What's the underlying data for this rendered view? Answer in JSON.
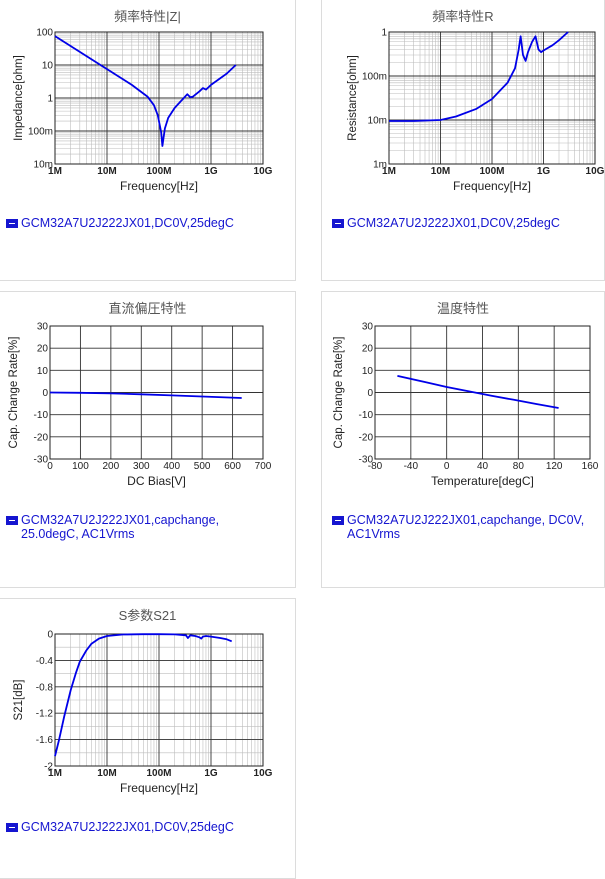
{
  "charts": [
    {
      "title": "頻率特性|Z|",
      "legend": [
        "GCM32A7U2J222JX01,DC0V,25degC"
      ],
      "chart_data": {
        "type": "line",
        "xscale": "log",
        "yscale": "log",
        "xlabel": "Frequency[Hz]",
        "ylabel": "Impedance[ohm]",
        "xlim": [
          1000000,
          10000000000
        ],
        "ylim": [
          0.01,
          100
        ],
        "xticks": [
          [
            1000000,
            "1M"
          ],
          [
            10000000,
            "10M"
          ],
          [
            100000000,
            "100M"
          ],
          [
            1000000000,
            "1G"
          ],
          [
            10000000000,
            "10G"
          ]
        ],
        "yticks": [
          [
            0.01,
            "10m"
          ],
          [
            0.1,
            "100m"
          ],
          [
            1,
            "1"
          ],
          [
            10,
            "10"
          ],
          [
            100,
            "100"
          ]
        ],
        "series": [
          {
            "color": "#0000e8",
            "x": [
              1000000,
              3000000,
              10000000,
              30000000,
              60000000,
              80000000,
              95000000,
              110000000,
              116000000,
              120000000,
              130000000,
              150000000,
              200000000,
              300000000,
              350000000,
              400000000,
              450000000,
              600000000,
              700000000,
              800000000,
              1000000000,
              2000000000,
              3000000000
            ],
            "y": [
              75,
              25,
              7.5,
              2.5,
              1.1,
              0.6,
              0.3,
              0.09,
              0.035,
              0.05,
              0.12,
              0.25,
              0.5,
              1.0,
              1.3,
              1.05,
              1.1,
              1.6,
              2.0,
              1.8,
              2.5,
              5.5,
              10
            ]
          }
        ]
      }
    },
    {
      "title": "頻率特性R",
      "legend": [
        "GCM32A7U2J222JX01,DC0V,25degC"
      ],
      "chart_data": {
        "type": "line",
        "xscale": "log",
        "yscale": "log",
        "xlabel": "Frequency[Hz]",
        "ylabel": "Resistance[ohm]",
        "xlim": [
          1000000,
          10000000000
        ],
        "ylim": [
          0.001,
          1
        ],
        "xticks": [
          [
            1000000,
            "1M"
          ],
          [
            10000000,
            "10M"
          ],
          [
            100000000,
            "100M"
          ],
          [
            1000000000,
            "1G"
          ],
          [
            10000000000,
            "10G"
          ]
        ],
        "yticks": [
          [
            0.001,
            "1m"
          ],
          [
            0.01,
            "10m"
          ],
          [
            0.1,
            "100m"
          ],
          [
            1,
            "1"
          ]
        ],
        "series": [
          {
            "color": "#0000e8",
            "x": [
              1000000,
              3000000,
              10000000,
              20000000,
              50000000,
              100000000,
              200000000,
              280000000,
              330000000,
              360000000,
              400000000,
              450000000,
              500000000,
              600000000,
              700000000,
              750000000,
              800000000,
              900000000,
              1000000000,
              1500000000,
              2000000000,
              3000000000
            ],
            "y": [
              0.0095,
              0.0095,
              0.01,
              0.012,
              0.018,
              0.03,
              0.07,
              0.15,
              0.4,
              0.8,
              0.3,
              0.22,
              0.35,
              0.6,
              0.8,
              0.55,
              0.4,
              0.35,
              0.38,
              0.5,
              0.65,
              1.0
            ]
          }
        ]
      }
    },
    {
      "title": "直流偏圧特性",
      "legend": [
        "GCM32A7U2J222JX01,capchange,",
        "25.0degC, AC1Vrms"
      ],
      "chart_data": {
        "type": "line",
        "xscale": "linear",
        "yscale": "linear",
        "xlabel": "DC Bias[V]",
        "ylabel": "Cap. Change Rate[%]",
        "xlim": [
          0,
          700
        ],
        "ylim": [
          -30,
          30
        ],
        "xticks": [
          [
            0,
            "0"
          ],
          [
            100,
            "100"
          ],
          [
            200,
            "200"
          ],
          [
            300,
            "300"
          ],
          [
            400,
            "400"
          ],
          [
            500,
            "500"
          ],
          [
            600,
            "600"
          ],
          [
            700,
            "700"
          ]
        ],
        "yticks": [
          [
            -30,
            "-30"
          ],
          [
            -20,
            "-20"
          ],
          [
            -10,
            "-10"
          ],
          [
            0,
            "0"
          ],
          [
            10,
            "10"
          ],
          [
            20,
            "20"
          ],
          [
            30,
            "30"
          ]
        ],
        "series": [
          {
            "color": "#0000e8",
            "x": [
              0,
              100,
              200,
              300,
              400,
              500,
              630
            ],
            "y": [
              0,
              -0.15,
              -0.4,
              -0.8,
              -1.3,
              -1.8,
              -2.5
            ]
          }
        ]
      }
    },
    {
      "title": "温度特性",
      "legend": [
        "GCM32A7U2J222JX01,capchange, DC0V,",
        "AC1Vrms"
      ],
      "chart_data": {
        "type": "line",
        "xscale": "linear",
        "yscale": "linear",
        "xlabel": "Temperature[degC]",
        "ylabel": "Cap. Change Rate[%]",
        "xlim": [
          -80,
          160
        ],
        "ylim": [
          -30,
          30
        ],
        "xticks": [
          [
            -80,
            "-80"
          ],
          [
            -40,
            "-40"
          ],
          [
            0,
            "0"
          ],
          [
            40,
            "40"
          ],
          [
            80,
            "80"
          ],
          [
            120,
            "120"
          ],
          [
            160,
            "160"
          ]
        ],
        "yticks": [
          [
            -30,
            "-30"
          ],
          [
            -20,
            "-20"
          ],
          [
            -10,
            "-10"
          ],
          [
            0,
            "0"
          ],
          [
            10,
            "10"
          ],
          [
            20,
            "20"
          ],
          [
            30,
            "30"
          ]
        ],
        "series": [
          {
            "color": "#0000e8",
            "x": [
              -55,
              -25,
              0,
              25,
              50,
              75,
              100,
              125
            ],
            "y": [
              7.5,
              4.8,
              2.5,
              0.5,
              -1.5,
              -3.3,
              -5.2,
              -7
            ]
          }
        ]
      }
    },
    {
      "title": "S参数S21",
      "legend": [
        "GCM32A7U2J222JX01,DC0V,25degC"
      ],
      "chart_data": {
        "type": "line",
        "xscale": "log",
        "yscale": "linear",
        "xlabel": "Frequency[Hz]",
        "ylabel": "S21[dB]",
        "xlim": [
          1000000,
          10000000000
        ],
        "ylim": [
          -2,
          0
        ],
        "xticks": [
          [
            1000000,
            "1M"
          ],
          [
            10000000,
            "10M"
          ],
          [
            100000000,
            "100M"
          ],
          [
            1000000000,
            "1G"
          ],
          [
            10000000000,
            "10G"
          ]
        ],
        "yticks": [
          [
            -2,
            "-2"
          ],
          [
            -1.6,
            "-1.6"
          ],
          [
            -1.2,
            "-1.2"
          ],
          [
            -0.8,
            "-0.8"
          ],
          [
            -0.4,
            "-0.4"
          ],
          [
            0,
            "0"
          ]
        ],
        "series": [
          {
            "color": "#0000e8",
            "x": [
              1000000,
              1200000,
              1500000,
              2000000,
              2500000,
              3000000,
              4000000,
              5000000,
              7000000,
              10000000,
              20000000,
              50000000,
              100000000,
              200000000,
              330000000,
              360000000,
              400000000,
              500000000,
              600000000,
              650000000,
              700000000,
              800000000,
              1000000000,
              1500000000,
              2000000000,
              2500000000
            ],
            "y": [
              -1.85,
              -1.6,
              -1.25,
              -0.85,
              -0.6,
              -0.42,
              -0.25,
              -0.15,
              -0.07,
              -0.03,
              -0.008,
              -0.003,
              -0.003,
              -0.006,
              -0.02,
              -0.06,
              -0.02,
              -0.03,
              -0.05,
              -0.07,
              -0.04,
              -0.03,
              -0.04,
              -0.06,
              -0.08,
              -0.11
            ]
          }
        ]
      }
    }
  ]
}
